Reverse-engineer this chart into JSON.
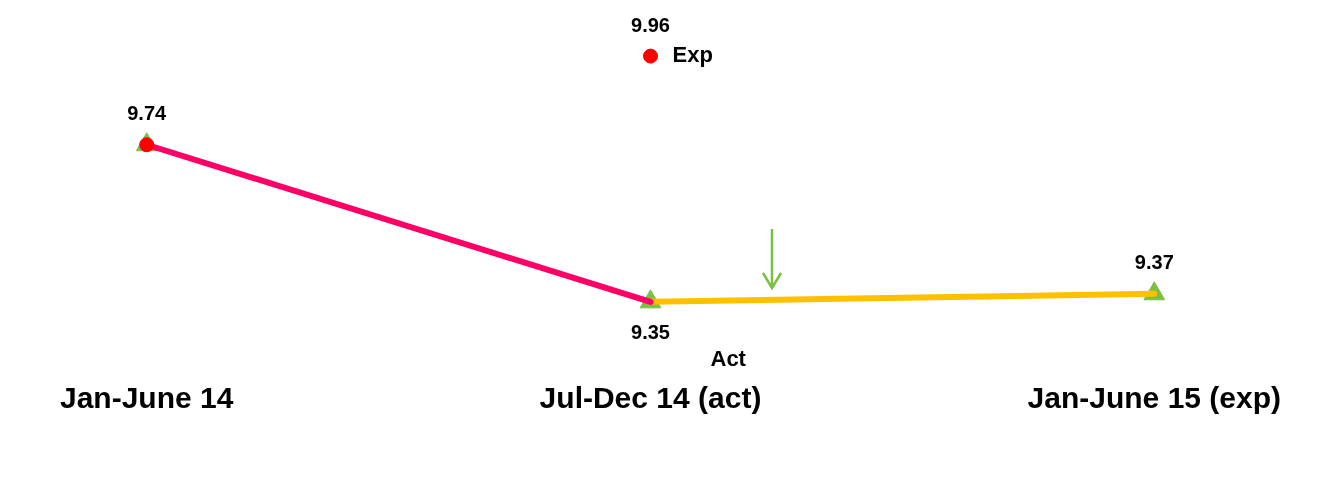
{
  "chart_data": {
    "type": "line",
    "categories": [
      "Jan-June 14",
      "Jul-Dec 14 (act)",
      "Jan-June 15 (exp)"
    ],
    "tick_labels": "x",
    "grid": false,
    "legend": false,
    "series": [
      {
        "type": "line",
        "color": "#ff0066",
        "values": [
          9.74,
          9.35,
          null
        ],
        "marker": "none"
      },
      {
        "type": "line",
        "color": "#ffc000",
        "values": [
          null,
          9.35,
          9.37
        ],
        "marker": "none"
      },
      {
        "type": "scatter",
        "name": "Act",
        "color": "#7ac143",
        "values": [
          9.74,
          9.35,
          9.37
        ],
        "marker": "triangle",
        "value_labels": [
          "9.74",
          "9.35",
          "9.37"
        ]
      },
      {
        "type": "scatter",
        "name": "Exp",
        "color": "#ff0000",
        "values": [
          9.74,
          9.96,
          null
        ],
        "marker": "circle",
        "value_labels": [
          null,
          "9.96",
          null
        ]
      }
    ]
  }
}
